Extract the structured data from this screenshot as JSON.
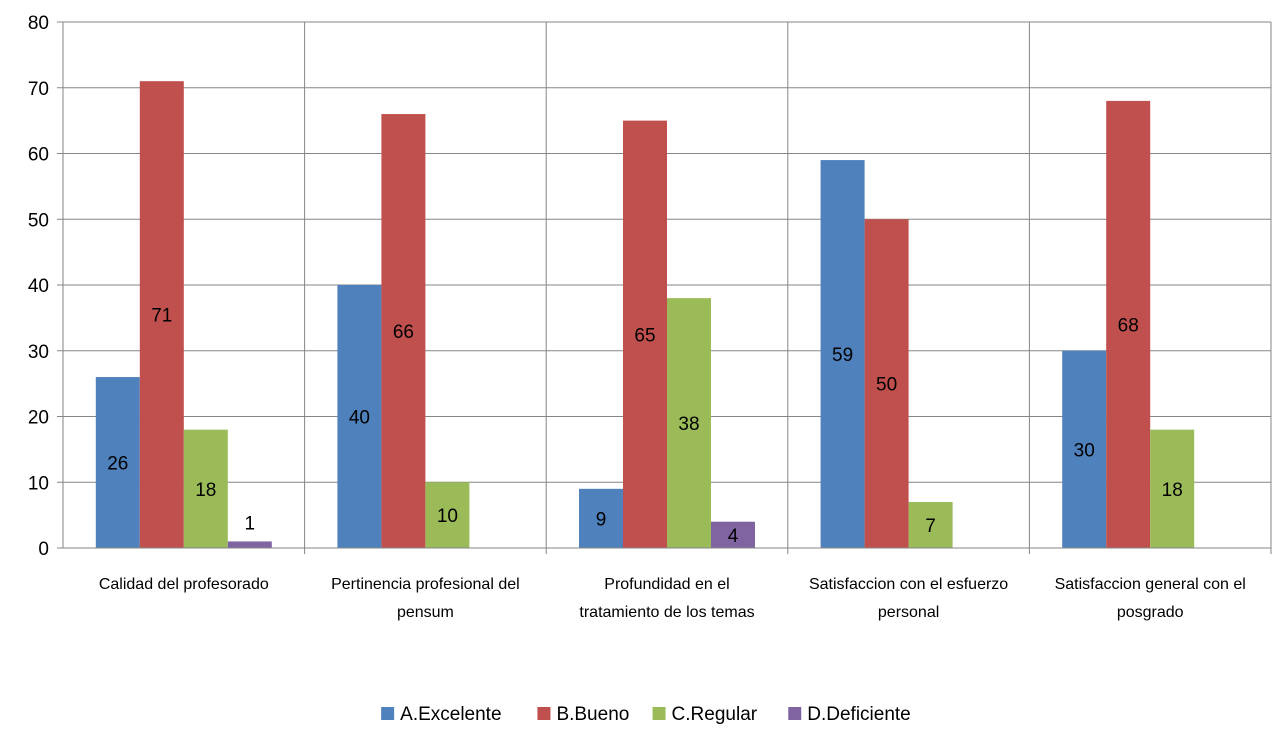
{
  "chart_data": {
    "type": "bar",
    "title": "",
    "xlabel": "",
    "ylabel": "",
    "ylim": [
      0,
      80
    ],
    "yticks": [
      0,
      10,
      20,
      30,
      40,
      50,
      60,
      70,
      80
    ],
    "grid": {
      "horizontal": true,
      "vertical_category_separators": true
    },
    "legend_position": "bottom",
    "categories": [
      [
        "Calidad del profesorado"
      ],
      [
        "Pertinencia profesional del",
        "pensum"
      ],
      [
        "Profundidad en el",
        "tratamiento de los temas"
      ],
      [
        "Satisfaccion con el esfuerzo",
        "personal"
      ],
      [
        "Satisfaccion general con el",
        "posgrado"
      ]
    ],
    "series": [
      {
        "name": "A.Excelente",
        "color": "#4F81BD",
        "values": [
          26,
          40,
          9,
          59,
          30
        ]
      },
      {
        "name": "B.Bueno",
        "color": "#C0504D",
        "values": [
          71,
          66,
          65,
          50,
          68
        ]
      },
      {
        "name": "C.Regular",
        "color": "#9BBB59",
        "values": [
          18,
          10,
          38,
          7,
          18
        ]
      },
      {
        "name": "D.Deficiente",
        "color": "#8064A2",
        "values": [
          1,
          null,
          4,
          null,
          null
        ]
      }
    ]
  }
}
